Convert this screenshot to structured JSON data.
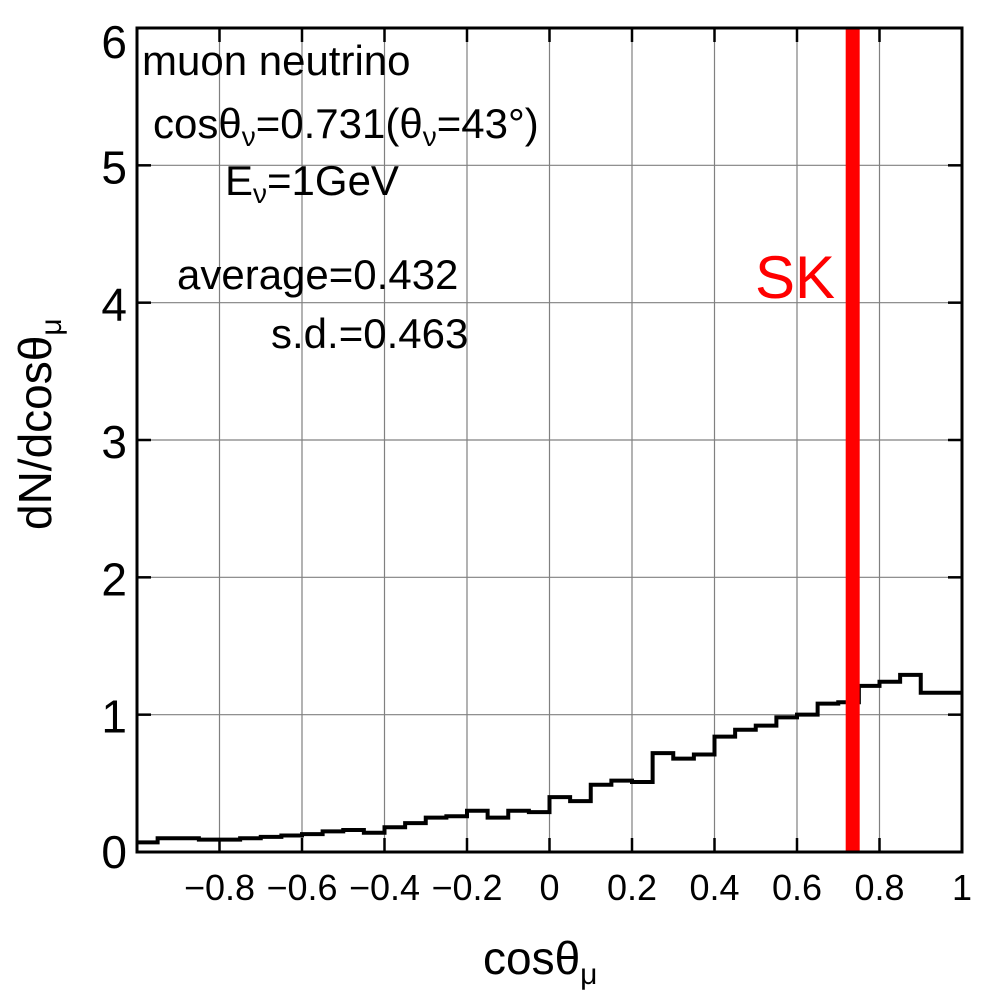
{
  "chart_data": {
    "type": "line",
    "step": true,
    "xlabel": {
      "main": "cosθ",
      "sub": "μ"
    },
    "ylabel": {
      "main": "dN/dcosθ",
      "sub": "μ"
    },
    "xlim": [
      -1,
      1
    ],
    "ylim": [
      0,
      6
    ],
    "grid": true,
    "x_ticks": [
      -0.8,
      -0.6,
      -0.4,
      -0.2,
      0,
      0.2,
      0.4,
      0.6,
      0.8,
      1
    ],
    "x_tick_labels": [
      "−0.8",
      "−0.6",
      "−0.4",
      "−0.2",
      "0",
      "0.2",
      "0.4",
      "0.6",
      "0.8",
      "1"
    ],
    "y_ticks": [
      0,
      1,
      2,
      3,
      4,
      5,
      6
    ],
    "y_tick_labels": [
      "0",
      "1",
      "2",
      "3",
      "4",
      "5",
      "6"
    ],
    "bin_edges": [
      -1.0,
      -0.95,
      -0.9,
      -0.85,
      -0.8,
      -0.75,
      -0.7,
      -0.65,
      -0.6,
      -0.55,
      -0.5,
      -0.45,
      -0.4,
      -0.35,
      -0.3,
      -0.25,
      -0.2,
      -0.15,
      -0.1,
      -0.05,
      0.0,
      0.05,
      0.1,
      0.15,
      0.2,
      0.25,
      0.3,
      0.35,
      0.4,
      0.45,
      0.5,
      0.55,
      0.6,
      0.65,
      0.7,
      0.75,
      0.8,
      0.85,
      0.9,
      0.95,
      1.0
    ],
    "values": [
      0.07,
      0.1,
      0.1,
      0.09,
      0.09,
      0.1,
      0.11,
      0.12,
      0.13,
      0.15,
      0.16,
      0.14,
      0.18,
      0.21,
      0.25,
      0.26,
      0.3,
      0.25,
      0.3,
      0.29,
      0.4,
      0.37,
      0.49,
      0.52,
      0.51,
      0.72,
      0.68,
      0.71,
      0.84,
      0.89,
      0.92,
      0.98,
      1.0,
      1.08,
      1.09,
      1.21,
      1.24,
      1.29,
      1.16,
      1.16
    ],
    "marker_line": {
      "x": 0.735,
      "label": "SK",
      "color": "#ff0000"
    },
    "line_color": "#000000",
    "grid_color": "#808080",
    "annotations": {
      "line1": "muon neutrino",
      "line2_pre": "cosθ",
      "line2_sub": "ν",
      "line2_mid": "=0.731(θ",
      "line2_sub2": "ν",
      "line2_post": "=43°)",
      "line3_pre": "E",
      "line3_sub": "ν",
      "line3_post": "=1GeV",
      "line4": "average=0.432",
      "line5": "s.d.=0.463"
    }
  }
}
